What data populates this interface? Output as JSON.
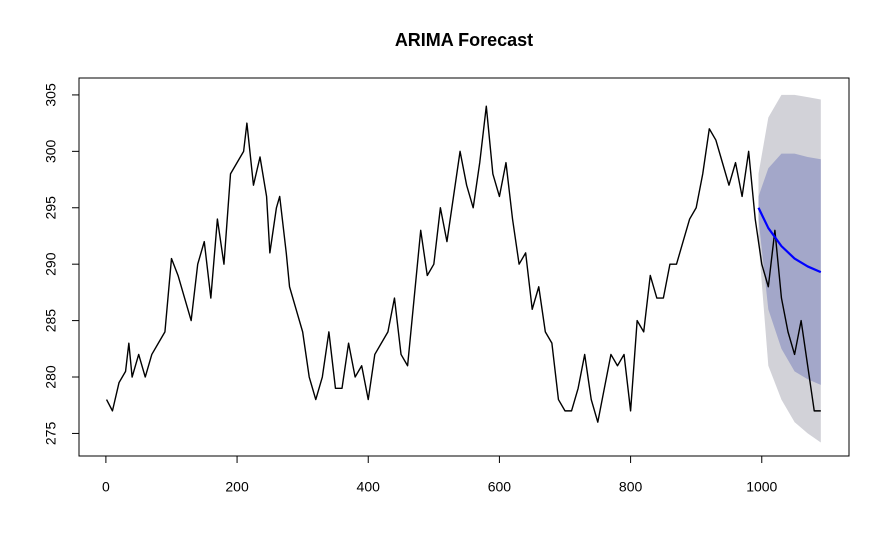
{
  "chart_data": {
    "type": "line",
    "title": "ARIMA Forecast",
    "x": [
      1,
      10,
      20,
      30,
      35,
      40,
      50,
      60,
      70,
      80,
      90,
      100,
      110,
      120,
      130,
      140,
      150,
      160,
      170,
      180,
      190,
      200,
      210,
      215,
      225,
      235,
      245,
      250,
      260,
      265,
      275,
      280,
      290,
      300,
      310,
      320,
      330,
      340,
      350,
      360,
      370,
      380,
      390,
      400,
      410,
      420,
      430,
      440,
      450,
      460,
      470,
      480,
      490,
      500,
      510,
      520,
      530,
      540,
      550,
      560,
      570,
      580,
      590,
      600,
      610,
      620,
      630,
      640,
      650,
      660,
      670,
      680,
      690,
      700,
      710,
      720,
      730,
      740,
      750,
      760,
      770,
      780,
      790,
      800,
      810,
      820,
      830,
      840,
      850,
      860,
      870,
      880,
      890,
      900,
      910,
      920,
      930,
      940,
      950,
      960,
      970,
      980,
      990,
      1000,
      1010,
      1020,
      1030,
      1040,
      1050,
      1060,
      1070,
      1080,
      1090
    ],
    "series": [
      {
        "color": "#000000",
        "values": [
          278,
          277,
          279.5,
          280.5,
          283,
          280,
          282,
          280,
          282,
          283,
          284,
          290.5,
          289,
          287,
          285,
          290,
          292,
          287,
          294,
          290,
          298,
          299,
          300,
          302.5,
          297,
          299.5,
          296,
          291,
          295,
          296,
          291,
          288,
          286,
          284,
          280,
          278,
          280,
          284,
          279,
          279,
          283,
          280,
          281,
          278,
          282,
          283,
          284,
          287,
          282,
          281,
          287,
          293,
          289,
          290,
          295,
          292,
          296,
          300,
          297,
          295,
          299,
          304,
          298,
          296,
          299,
          294,
          290,
          291,
          286,
          288,
          284,
          283,
          278,
          277,
          277,
          279,
          282,
          278,
          276,
          279,
          282,
          281,
          282,
          277,
          285,
          284,
          289,
          287,
          287,
          290,
          290,
          292,
          294,
          295,
          298,
          302,
          301,
          299,
          297,
          299,
          296,
          300,
          294,
          290,
          288,
          293,
          287,
          284,
          282,
          285,
          281,
          277,
          277
        ]
      }
    ],
    "forecast": {
      "x": [
        995,
        1010,
        1030,
        1050,
        1070,
        1090
      ],
      "values": [
        295,
        293.2,
        291.6,
        290.5,
        289.8,
        289.3
      ],
      "color": "#0000ff",
      "intervals": [
        {
          "lower": [
            292,
            281,
            278,
            276,
            275,
            274.2
          ],
          "upper": [
            298,
            303,
            305,
            305,
            304.8,
            304.6
          ],
          "color": "#d2d2d8"
        },
        {
          "lower": [
            294,
            286,
            282.5,
            280.5,
            279.8,
            279.3
          ],
          "upper": [
            296,
            298.5,
            299.8,
            299.8,
            299.5,
            299.3
          ],
          "color": "#a3a7c9"
        }
      ]
    },
    "xlim": [
      -41,
      1133
    ],
    "ylim": [
      273,
      306.5
    ],
    "xticks": [
      0,
      200,
      400,
      600,
      800,
      1000
    ],
    "yticks": [
      275,
      280,
      285,
      290,
      295,
      300,
      305
    ]
  }
}
